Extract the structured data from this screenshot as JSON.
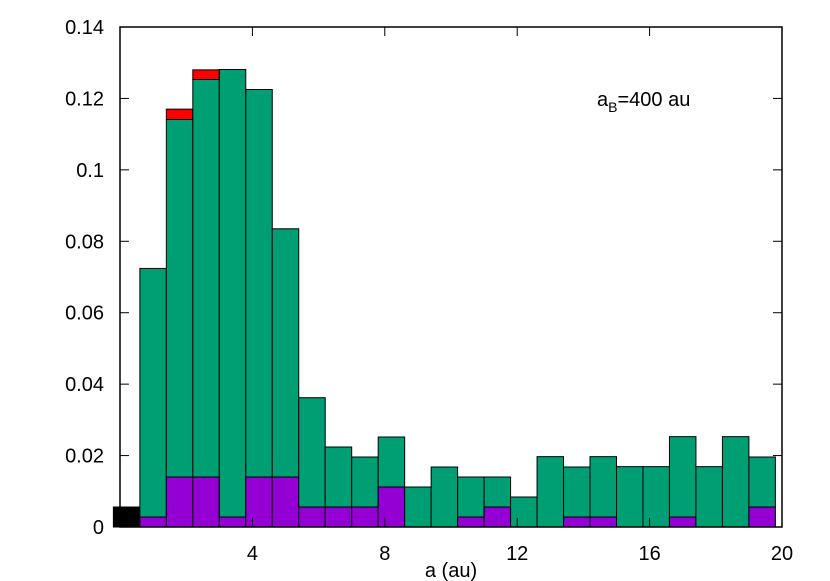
{
  "chart_data": {
    "type": "bar",
    "stacked": true,
    "xlabel": "a (au)",
    "ylabel": "",
    "xlim": [
      0,
      20
    ],
    "ylim": [
      0,
      0.14
    ],
    "xticks": [
      4,
      8,
      12,
      16,
      20
    ],
    "xtick_labels": [
      "4",
      "8",
      "12",
      "16",
      "20"
    ],
    "yticks": [
      0,
      0.02,
      0.04,
      0.06,
      0.08,
      0.1,
      0.12,
      0.14
    ],
    "ytick_labels": [
      "0",
      "0.02",
      "0.04",
      "0.06",
      "0.08",
      "0.1",
      "0.12",
      "0.14"
    ],
    "grid": false,
    "annotation": {
      "main": "a",
      "subscript": "B",
      "rest": "=400 au"
    },
    "bin_width": 0.8,
    "x": [
      0.2,
      1.0,
      1.8,
      2.6,
      3.4,
      4.2,
      5.0,
      5.8,
      6.6,
      7.4,
      8.2,
      9.0,
      9.8,
      10.6,
      11.4,
      12.2,
      13.0,
      13.8,
      14.6,
      15.4,
      16.2,
      17.0,
      17.8,
      18.6,
      19.4
    ],
    "series": [
      {
        "color": "#9400d3",
        "values": [
          0,
          0.0028,
          0.014,
          0.014,
          0.0028,
          0.014,
          0.014,
          0.0056,
          0.0056,
          0.0056,
          0.0112,
          0,
          0,
          0.0028,
          0.0056,
          0,
          0,
          0.0028,
          0.0028,
          0,
          0,
          0.0028,
          0,
          0,
          0.0056
        ]
      },
      {
        "color": "#009e73",
        "values": [
          0,
          0.0696,
          0.1001,
          0.1113,
          0.1253,
          0.1085,
          0.0695,
          0.0306,
          0.0168,
          0.014,
          0.014,
          0.0112,
          0.0168,
          0.0112,
          0.0084,
          0.0084,
          0.0197,
          0.014,
          0.0169,
          0.0169,
          0.0169,
          0.0225,
          0.0169,
          0.0253,
          0.014
        ]
      },
      {
        "color": "#ff0000",
        "values": [
          0,
          0,
          0.0029,
          0.0027,
          0,
          0,
          0,
          0,
          0,
          0,
          0,
          0,
          0,
          0,
          0,
          0,
          0,
          0,
          0,
          0,
          0,
          0,
          0,
          0,
          0
        ]
      },
      {
        "color": "#000000",
        "values": [
          0.0056,
          0,
          0,
          0,
          0,
          0,
          0,
          0,
          0,
          0,
          0,
          0,
          0,
          0,
          0,
          0,
          0,
          0,
          0,
          0,
          0,
          0,
          0,
          0,
          0
        ]
      }
    ]
  }
}
